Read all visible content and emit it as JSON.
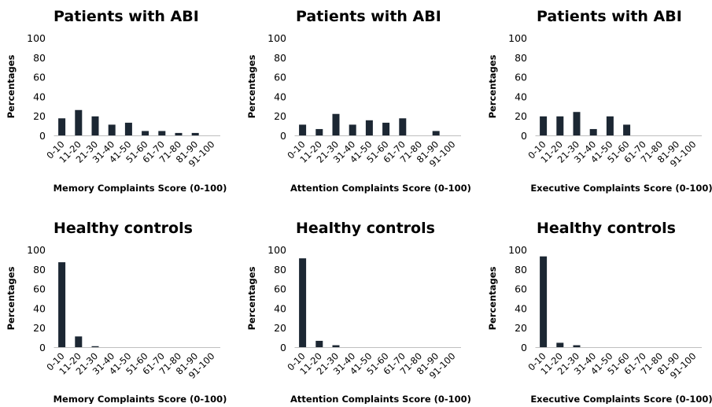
{
  "chart_data": [
    {
      "type": "bar",
      "title": "Patients with ABI",
      "xlabel": "Memory Complaints Score (0-100)",
      "ylabel": "Percentages",
      "categories": [
        "0-10",
        "11-20",
        "21-30",
        "31-40",
        "41-50",
        "51-60",
        "61-70",
        "71-80",
        "81-90",
        "91-100"
      ],
      "values": [
        17.5,
        26,
        19.5,
        11,
        13,
        4.5,
        4.5,
        2.5,
        2.5,
        0
      ],
      "ylim": [
        0,
        100
      ],
      "yticks": [
        0,
        20,
        40,
        60,
        80,
        100
      ],
      "bar_color": "#1c2733"
    },
    {
      "type": "bar",
      "title": "Patients with ABI",
      "xlabel": "Attention Complaints Score (0-100)",
      "ylabel": "Percentages",
      "categories": [
        "0-10",
        "11-20",
        "21-30",
        "31-40",
        "41-50",
        "51-60",
        "61-70",
        "71-80",
        "81-90",
        "91-100"
      ],
      "values": [
        11,
        6.5,
        22,
        11,
        15.5,
        13,
        17.5,
        0,
        4.5,
        0
      ],
      "ylim": [
        0,
        100
      ],
      "yticks": [
        0,
        20,
        40,
        60,
        80,
        100
      ],
      "bar_color": "#1c2733"
    },
    {
      "type": "bar",
      "title": "Patients with ABI",
      "xlabel": "Executive Complaints Score (0-100)",
      "ylabel": "Percentages",
      "categories": [
        "0-10",
        "11-20",
        "21-30",
        "31-40",
        "41-50",
        "51-60",
        "61-70",
        "71-80",
        "81-90",
        "91-100"
      ],
      "values": [
        19.5,
        19.5,
        24,
        6.5,
        19.5,
        11,
        0,
        0,
        0,
        0
      ],
      "ylim": [
        0,
        100
      ],
      "yticks": [
        0,
        20,
        40,
        60,
        80,
        100
      ],
      "bar_color": "#1c2733"
    },
    {
      "type": "bar",
      "title": "Healthy controls",
      "xlabel": "Memory Complaints Score (0-100)",
      "ylabel": "Percentages",
      "categories": [
        "0-10",
        "11-20",
        "21-30",
        "31-40",
        "41-50",
        "51-60",
        "61-70",
        "71-80",
        "81-90",
        "91-100"
      ],
      "values": [
        87,
        11,
        1,
        0,
        0,
        0,
        0,
        0,
        0,
        0
      ],
      "ylim": [
        0,
        100
      ],
      "yticks": [
        0,
        20,
        40,
        60,
        80,
        100
      ],
      "bar_color": "#1c2733"
    },
    {
      "type": "bar",
      "title": "Healthy controls",
      "xlabel": "Attention Complaints Score (0-100)",
      "ylabel": "Percentages",
      "categories": [
        "0-10",
        "11-20",
        "21-30",
        "31-40",
        "41-50",
        "51-60",
        "61-70",
        "71-80",
        "81-90",
        "91-100"
      ],
      "values": [
        91,
        6.5,
        2,
        0,
        0,
        0,
        0,
        0,
        0,
        0
      ],
      "ylim": [
        0,
        100
      ],
      "yticks": [
        0,
        20,
        40,
        60,
        80,
        100
      ],
      "bar_color": "#1c2733"
    },
    {
      "type": "bar",
      "title": "Healthy controls",
      "xlabel": "Executive Complaints Score (0-100)",
      "ylabel": "Percentages",
      "categories": [
        "0-10",
        "11-20",
        "21-30",
        "31-40",
        "41-50",
        "51-60",
        "61-70",
        "71-80",
        "81-90",
        "91-100"
      ],
      "values": [
        93,
        4.5,
        2,
        0,
        0,
        0,
        0,
        0,
        0,
        0
      ],
      "ylim": [
        0,
        100
      ],
      "yticks": [
        0,
        20,
        40,
        60,
        80,
        100
      ],
      "bar_color": "#1c2733"
    }
  ]
}
